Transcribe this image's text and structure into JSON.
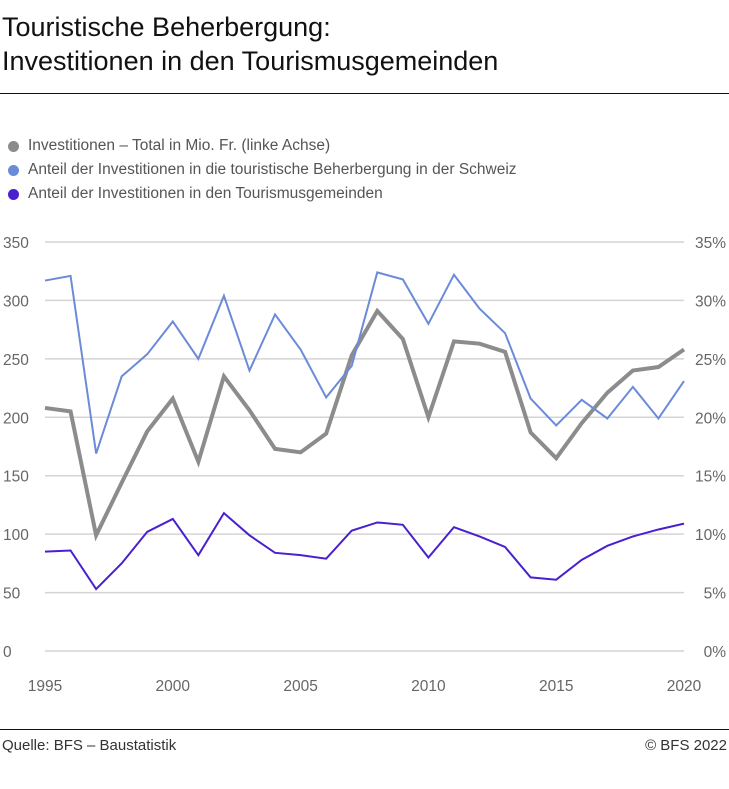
{
  "header": {
    "title_line1": "Touristische Beherbergung:",
    "title_line2": "Investitionen in den Tourismusgemeinden"
  },
  "footer": {
    "source": "Quelle: BFS – Baustatistik",
    "copyright": "© BFS 2022"
  },
  "chart_data": {
    "type": "line",
    "x": [
      1995,
      1996,
      1997,
      1998,
      1999,
      2000,
      2001,
      2002,
      2003,
      2004,
      2005,
      2006,
      2007,
      2008,
      2009,
      2010,
      2011,
      2012,
      2013,
      2014,
      2015,
      2016,
      2017,
      2018,
      2019,
      2020
    ],
    "series": [
      {
        "name": "Investitionen – Total in Mio. Fr. (linke Achse)",
        "axis": "left",
        "color": "#8c8c8c",
        "values": [
          208,
          205,
          99,
          144,
          188,
          216,
          162,
          235,
          206,
          173,
          170,
          186,
          253,
          291,
          267,
          200,
          265,
          263,
          256,
          187,
          165,
          195,
          221,
          240,
          243,
          258
        ]
      },
      {
        "name": "Anteil der Investitionen in die touristische Beherbergung in der Schweiz",
        "axis": "right",
        "color": "#6b8bd9",
        "values": [
          31.7,
          32.1,
          16.9,
          23.5,
          25.4,
          28.2,
          25.0,
          30.4,
          24.0,
          28.8,
          25.8,
          21.7,
          24.4,
          32.4,
          31.8,
          28.0,
          32.2,
          29.3,
          27.2,
          21.6,
          19.3,
          21.5,
          19.9,
          22.6,
          19.9,
          23.1
        ]
      },
      {
        "name": "Anteil der Investitionen in den Tourismusgemeinden",
        "axis": "right",
        "color": "#4a1fcf",
        "values": [
          8.5,
          8.6,
          5.3,
          7.5,
          10.2,
          11.3,
          8.2,
          11.8,
          9.9,
          8.4,
          8.2,
          7.9,
          10.3,
          11.0,
          10.8,
          8.0,
          10.6,
          9.8,
          8.9,
          6.3,
          6.1,
          7.8,
          9.0,
          9.8,
          10.4,
          10.9
        ]
      }
    ],
    "xlim": [
      1995,
      2020
    ],
    "ylim_left": [
      0,
      350
    ],
    "ylim_right": [
      0,
      35
    ],
    "x_ticks": [
      "1995",
      "2000",
      "2005",
      "2010",
      "2015",
      "2020"
    ],
    "y_ticks_left": [
      "0",
      "50",
      "100",
      "150",
      "200",
      "250",
      "300",
      "350"
    ],
    "y_ticks_right": [
      "0%",
      "5%",
      "10%",
      "15%",
      "20%",
      "25%",
      "30%",
      "35%"
    ],
    "grid": true,
    "legend_position": "top-left"
  }
}
